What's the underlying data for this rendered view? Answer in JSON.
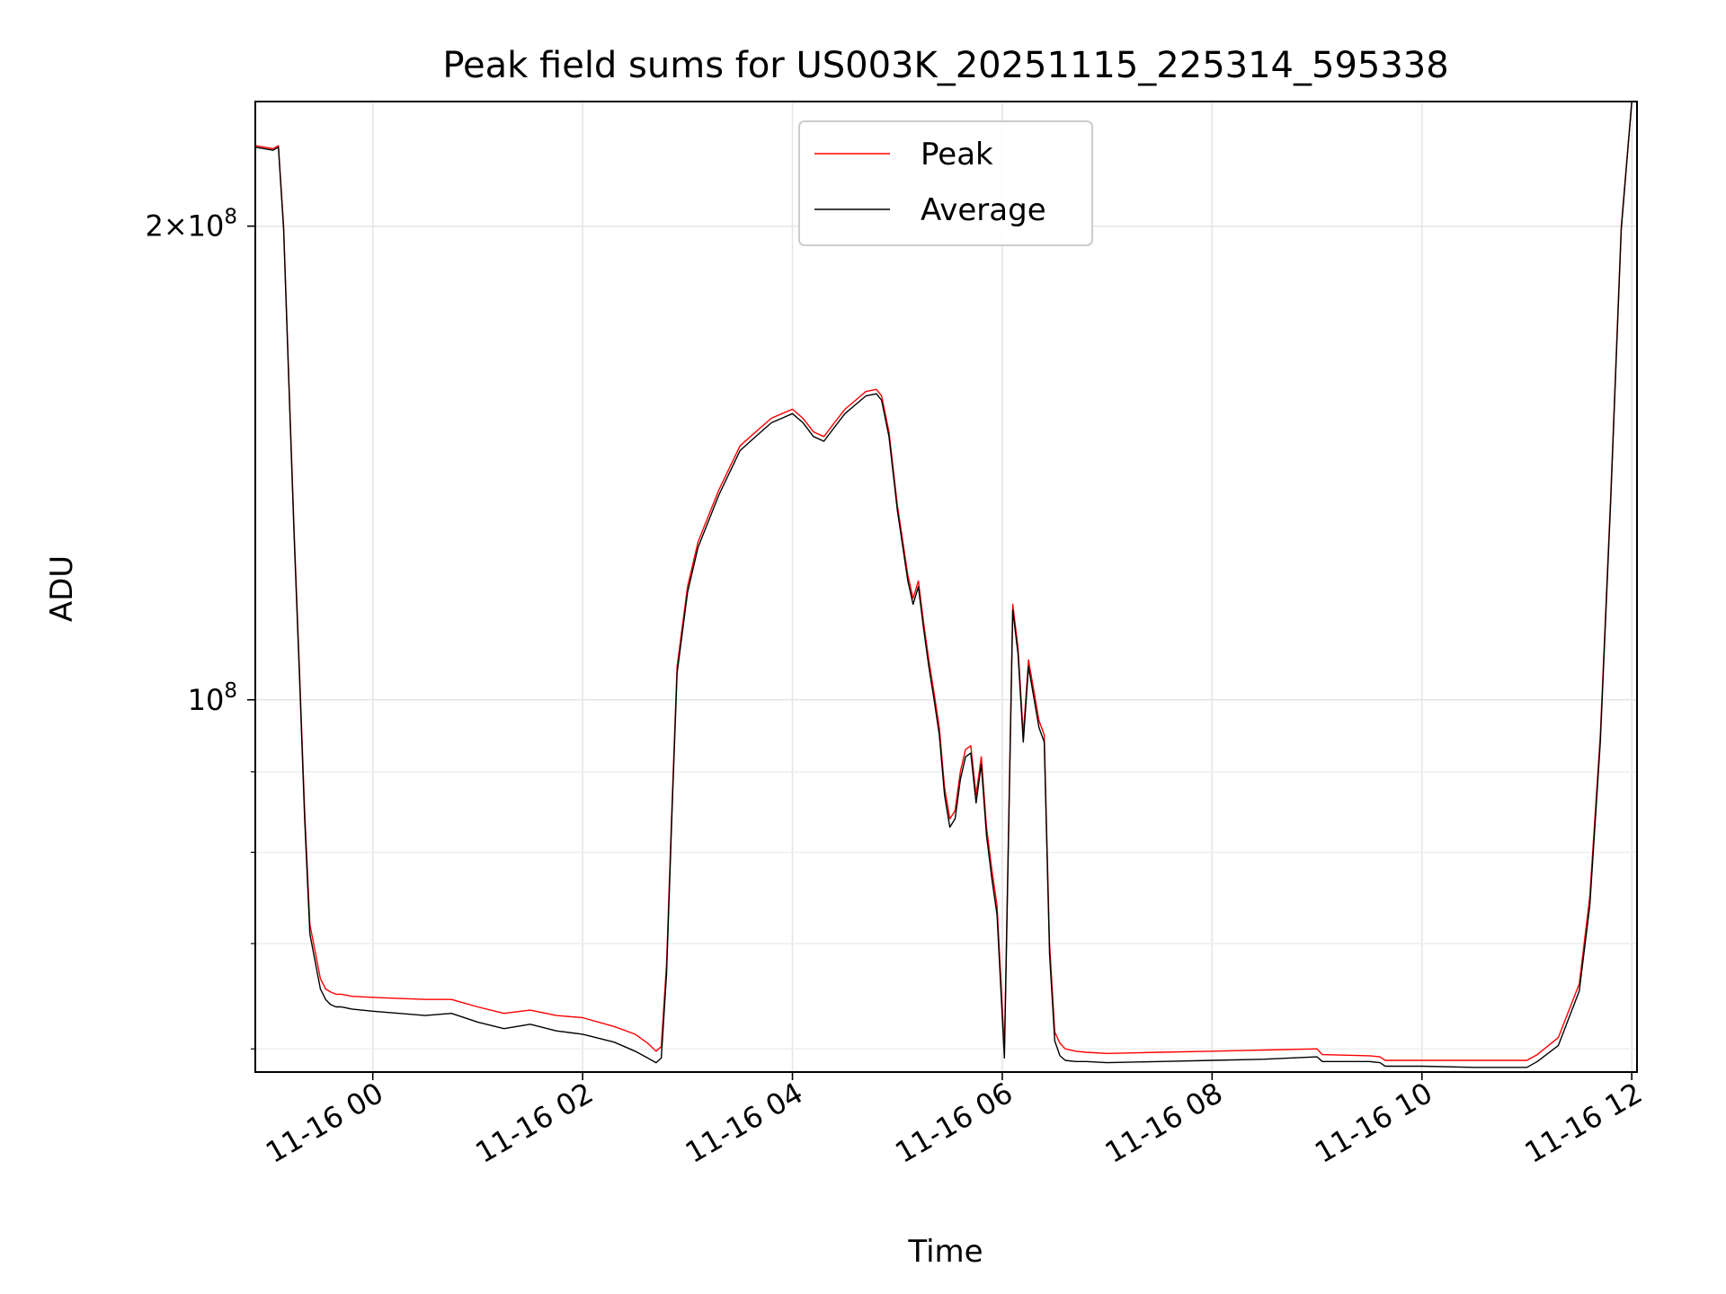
{
  "chart_data": {
    "type": "line",
    "title": "Peak field sums for US003K_20251115_225314_595338",
    "xlabel": "Time",
    "ylabel": "ADU",
    "x_unit": "hours relative to 11-16 00:00",
    "xlim": [
      -1.12,
      12.05
    ],
    "ylim": [
      58000000,
      240000000
    ],
    "yscale": "log",
    "grid": true,
    "legend_position": "top-center",
    "x_ticks": [
      {
        "value": 0,
        "label": "11-16 00"
      },
      {
        "value": 2,
        "label": "11-16 02"
      },
      {
        "value": 4,
        "label": "11-16 04"
      },
      {
        "value": 6,
        "label": "11-16 06"
      },
      {
        "value": 8,
        "label": "11-16 08"
      },
      {
        "value": 10,
        "label": "11-16 10"
      },
      {
        "value": 12,
        "label": "11-16 12"
      }
    ],
    "y_major_ticks": [
      {
        "value": 100000000,
        "base": "10",
        "exp": "8",
        "mult": ""
      },
      {
        "value": 200000000,
        "base": "10",
        "exp": "8",
        "mult": "2×"
      }
    ],
    "y_minor_ticks": [
      60000000,
      70000000,
      80000000,
      90000000
    ],
    "series": [
      {
        "name": "Peak",
        "color": "#ff0000",
        "x": [
          -1.12,
          -0.95,
          -0.9,
          -0.85,
          -0.8,
          -0.75,
          -0.7,
          -0.65,
          -0.6,
          -0.5,
          -0.45,
          -0.4,
          -0.35,
          -0.3,
          -0.2,
          0,
          0.5,
          0.75,
          1,
          1.25,
          1.5,
          1.75,
          2,
          2.3,
          2.5,
          2.62,
          2.7,
          2.75,
          2.8,
          2.85,
          2.9,
          3,
          3.1,
          3.3,
          3.5,
          3.6,
          3.7,
          3.8,
          3.9,
          4,
          4.1,
          4.2,
          4.3,
          4.4,
          4.5,
          4.6,
          4.7,
          4.8,
          4.85,
          4.92,
          5,
          5.1,
          5.15,
          5.2,
          5.25,
          5.3,
          5.35,
          5.4,
          5.45,
          5.5,
          5.55,
          5.6,
          5.65,
          5.7,
          5.75,
          5.8,
          5.85,
          5.9,
          5.95,
          6.02,
          6.1,
          6.15,
          6.2,
          6.25,
          6.35,
          6.4,
          6.45,
          6.5,
          6.55,
          6.6,
          6.7,
          6.8,
          7,
          7.5,
          8,
          8.5,
          9,
          9.05,
          9.5,
          9.6,
          9.65,
          10,
          10.5,
          11,
          11.1,
          11.3,
          11.5,
          11.6,
          11.7,
          11.8,
          11.9,
          12,
          12.05
        ],
        "y": [
          225000000,
          224000000,
          225000000,
          200000000,
          160000000,
          128000000,
          105000000,
          85000000,
          72000000,
          66500000,
          65500000,
          65200000,
          65000000,
          65000000,
          64800000,
          64700000,
          64500000,
          64500000,
          63800000,
          63200000,
          63500000,
          63000000,
          62800000,
          62000000,
          61300000,
          60500000,
          59800000,
          60200000,
          68000000,
          85000000,
          105000000,
          118000000,
          126000000,
          136000000,
          145000000,
          147000000,
          149000000,
          151000000,
          152000000,
          153000000,
          151000000,
          148000000,
          147000000,
          150000000,
          153000000,
          155000000,
          157000000,
          157500000,
          156000000,
          148000000,
          133000000,
          120000000,
          116000000,
          119000000,
          112000000,
          106000000,
          101000000,
          96000000,
          88000000,
          84000000,
          85000000,
          90000000,
          93000000,
          93500000,
          87000000,
          92000000,
          83000000,
          78000000,
          74000000,
          60000000,
          115000000,
          108000000,
          95000000,
          106000000,
          97000000,
          95000000,
          70000000,
          61500000,
          60500000,
          60000000,
          59800000,
          59700000,
          59600000,
          59700000,
          59800000,
          59900000,
          60000000,
          59500000,
          59400000,
          59300000,
          59000000,
          59000000,
          59000000,
          59000000,
          59500000,
          61000000,
          66000000,
          75000000,
          95000000,
          135000000,
          200000000,
          245000000,
          245000000
        ]
      },
      {
        "name": "Average",
        "color": "#000000",
        "x": [
          -1.12,
          -0.95,
          -0.9,
          -0.85,
          -0.8,
          -0.75,
          -0.7,
          -0.65,
          -0.6,
          -0.5,
          -0.45,
          -0.4,
          -0.35,
          -0.3,
          -0.2,
          0,
          0.5,
          0.75,
          1,
          1.25,
          1.5,
          1.75,
          2,
          2.3,
          2.5,
          2.62,
          2.7,
          2.75,
          2.8,
          2.85,
          2.9,
          3,
          3.1,
          3.3,
          3.5,
          3.6,
          3.7,
          3.8,
          3.9,
          4,
          4.1,
          4.2,
          4.3,
          4.4,
          4.5,
          4.6,
          4.7,
          4.8,
          4.85,
          4.92,
          5,
          5.1,
          5.15,
          5.2,
          5.25,
          5.3,
          5.35,
          5.4,
          5.45,
          5.5,
          5.55,
          5.6,
          5.65,
          5.7,
          5.75,
          5.8,
          5.85,
          5.9,
          5.95,
          6.02,
          6.1,
          6.15,
          6.2,
          6.25,
          6.35,
          6.4,
          6.45,
          6.5,
          6.55,
          6.6,
          6.7,
          6.8,
          7,
          7.5,
          8,
          8.5,
          9,
          9.05,
          9.5,
          9.6,
          9.65,
          10,
          10.5,
          11,
          11.1,
          11.3,
          11.5,
          11.6,
          11.7,
          11.8,
          11.9,
          12,
          12.05
        ],
        "y": [
          224500000,
          223500000,
          224500000,
          199000000,
          159000000,
          127000000,
          104000000,
          84000000,
          71000000,
          65500000,
          64500000,
          64000000,
          63800000,
          63800000,
          63600000,
          63400000,
          63000000,
          63200000,
          62400000,
          61800000,
          62200000,
          61600000,
          61300000,
          60600000,
          59800000,
          59200000,
          58800000,
          59200000,
          67000000,
          84000000,
          104000000,
          117000000,
          125000000,
          135000000,
          144000000,
          146000000,
          148000000,
          150000000,
          151000000,
          152000000,
          150000000,
          147000000,
          146000000,
          149000000,
          152000000,
          154000000,
          156000000,
          156500000,
          155000000,
          147000000,
          132000000,
          119000000,
          115000000,
          118000000,
          111000000,
          105000000,
          100000000,
          95000000,
          87000000,
          83000000,
          84000000,
          89000000,
          92000000,
          92500000,
          86000000,
          91000000,
          82000000,
          77000000,
          73000000,
          59200000,
          114000000,
          107000000,
          94000000,
          105000000,
          96000000,
          94000000,
          69000000,
          60700000,
          59400000,
          59000000,
          58900000,
          58900000,
          58800000,
          58900000,
          59000000,
          59100000,
          59300000,
          58900000,
          58900000,
          58800000,
          58500000,
          58500000,
          58400000,
          58400000,
          58900000,
          60300000,
          65300000,
          74000000,
          94000000,
          134000000,
          199000000,
          244000000,
          244000000
        ]
      }
    ]
  }
}
